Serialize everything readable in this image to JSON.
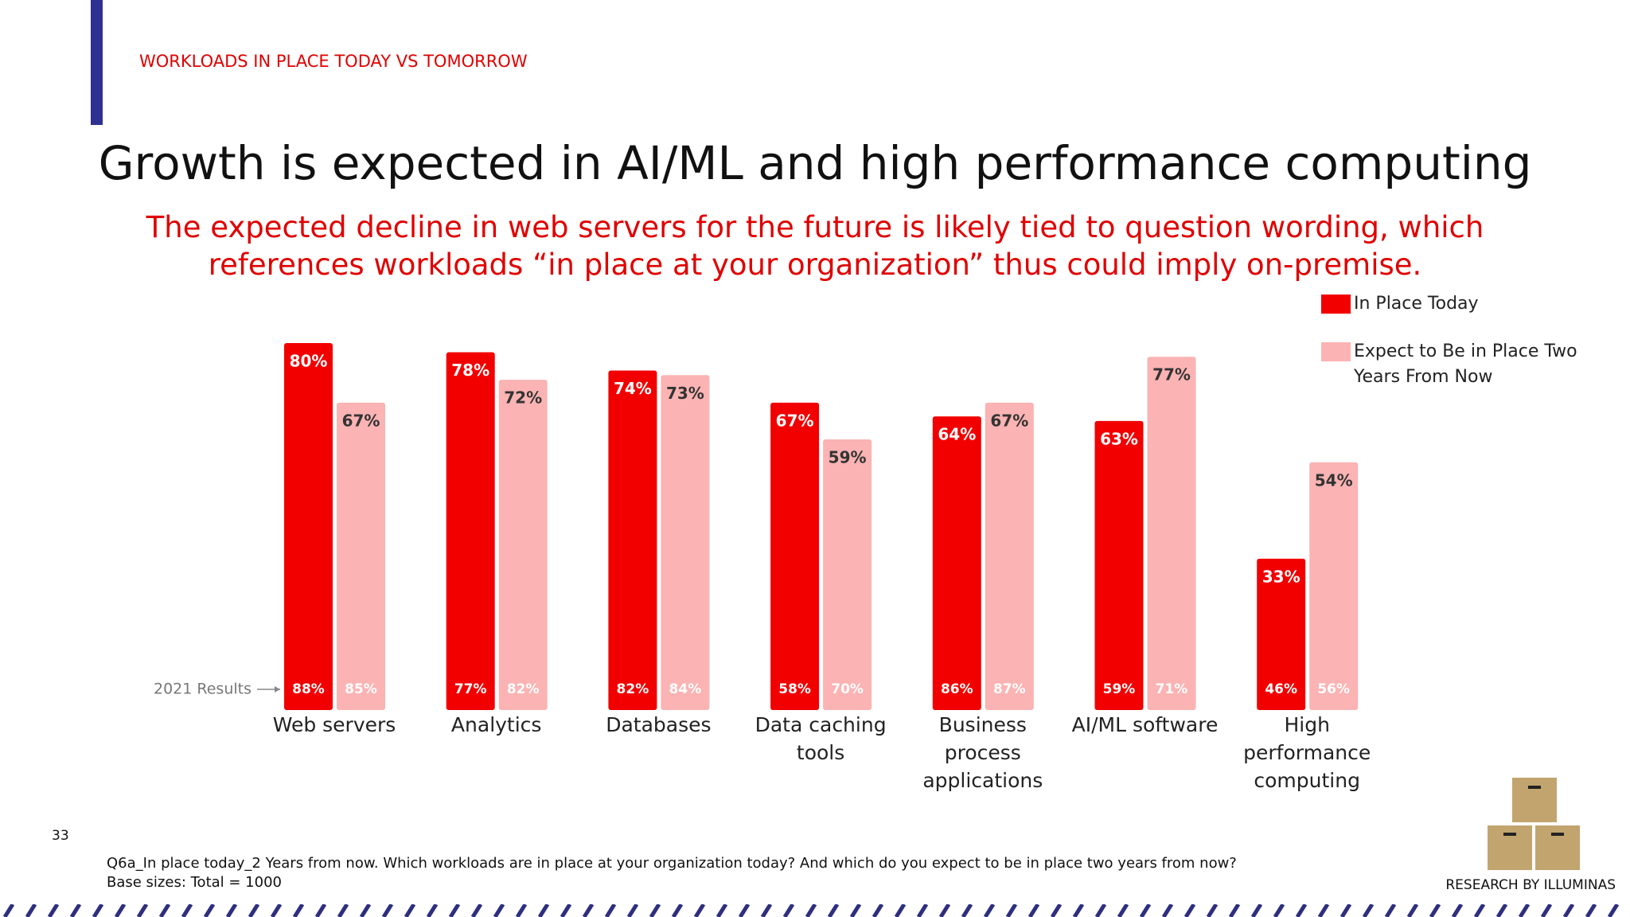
{
  "chart_data": {
    "type": "bar",
    "section_label": "WORKLOADS IN PLACE TODAY VS TOMORROW",
    "title": "Growth is expected in AI/ML and high performance computing",
    "subtitle": "The expected decline in web servers for the future is likely tied to question wording, which references workloads “in place at your organization” thus could imply on-premise.",
    "categories": [
      "Web servers",
      "Analytics",
      "Databases",
      "Data caching tools",
      "Business process applications",
      "AI/ML software",
      "High performance computing"
    ],
    "series": [
      {
        "name": "In Place Today",
        "color": "#f20000",
        "values": [
          80,
          78,
          74,
          67,
          64,
          63,
          33
        ],
        "value_labels": [
          "80%",
          "78%",
          "74%",
          "67%",
          "64%",
          "63%",
          "33%"
        ]
      },
      {
        "name": "Expect to Be in Place Two Years From Now",
        "color": "#fbb3b3",
        "values": [
          67,
          72,
          73,
          59,
          67,
          77,
          54
        ],
        "value_labels": [
          "67%",
          "72%",
          "73%",
          "59%",
          "67%",
          "77%",
          "54%"
        ]
      }
    ],
    "results_2021": {
      "label": "2021 Results",
      "series": [
        {
          "values": [
            88,
            77,
            82,
            58,
            86,
            59,
            46
          ],
          "value_labels": [
            "88%",
            "77%",
            "82%",
            "58%",
            "86%",
            "59%",
            "46%"
          ]
        },
        {
          "values": [
            85,
            82,
            84,
            70,
            87,
            71,
            56
          ],
          "value_labels": [
            "85%",
            "82%",
            "84%",
            "70%",
            "87%",
            "71%",
            "56%"
          ]
        }
      ]
    },
    "legend": "top-right"
  },
  "footer": {
    "page_number": "33",
    "question": "Q6a_In place today_2 Years from now. Which workloads are in place at your organization today? And which do you expect to be in place two years from now?",
    "base": "Base sizes: Total = 1000",
    "credit": "RESEARCH BY ILLUMINAS"
  }
}
